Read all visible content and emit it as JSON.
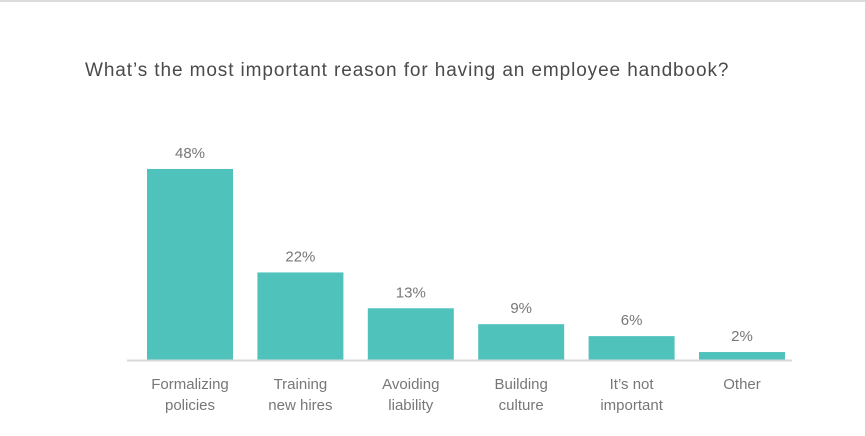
{
  "chart_data": {
    "type": "bar",
    "title": "What’s the most important reason for having an employee handbook?",
    "categories": [
      [
        "Formalizing",
        "policies"
      ],
      [
        "Training",
        "new hires"
      ],
      [
        "Avoiding",
        "liability"
      ],
      [
        "Building",
        "culture"
      ],
      [
        "It’s not",
        "important"
      ],
      [
        "Other"
      ]
    ],
    "values": [
      48,
      22,
      13,
      9,
      6,
      2
    ],
    "value_labels": [
      "48%",
      "22%",
      "13%",
      "9%",
      "6%",
      "2%"
    ],
    "unit": "%",
    "ylim": [
      0,
      50
    ],
    "grid": false,
    "bar_color": "#4fc3bb",
    "axis_color": "#d9d9d9"
  }
}
